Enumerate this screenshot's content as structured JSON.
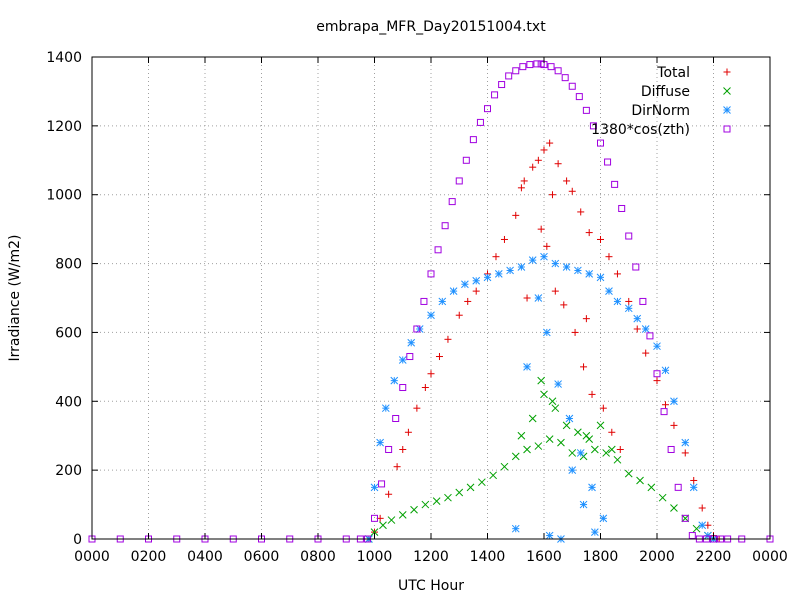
{
  "chart_data": {
    "type": "scatter",
    "title": "embrapa_MFR_Day20151004.txt",
    "xlabel": "UTC Hour",
    "ylabel": "Irradiance (W/m2)",
    "xlim": [
      0,
      24
    ],
    "ylim": [
      0,
      1400
    ],
    "x_ticks": [
      {
        "value": 0,
        "label": "0000"
      },
      {
        "value": 2,
        "label": "0200"
      },
      {
        "value": 4,
        "label": "0400"
      },
      {
        "value": 6,
        "label": "0600"
      },
      {
        "value": 8,
        "label": "0800"
      },
      {
        "value": 10,
        "label": "1000"
      },
      {
        "value": 12,
        "label": "1200"
      },
      {
        "value": 14,
        "label": "1400"
      },
      {
        "value": 16,
        "label": "1600"
      },
      {
        "value": 18,
        "label": "1800"
      },
      {
        "value": 20,
        "label": "2000"
      },
      {
        "value": 22,
        "label": "2200"
      },
      {
        "value": 24,
        "label": "0000"
      }
    ],
    "y_ticks": [
      0,
      200,
      400,
      600,
      800,
      1000,
      1200,
      1400
    ],
    "grid": true,
    "legend_position": "top-right",
    "series": [
      {
        "name": "Total",
        "color": "#e00000",
        "marker": "plus",
        "x": [
          9.8,
          10.0,
          10.2,
          10.5,
          10.8,
          11.0,
          11.2,
          11.5,
          11.8,
          12.0,
          12.3,
          12.6,
          13.0,
          13.3,
          13.6,
          14.0,
          14.3,
          14.6,
          15.0,
          15.3,
          15.6,
          15.8,
          16.0,
          16.2,
          16.5,
          16.8,
          17.0,
          17.3,
          17.6,
          18.0,
          18.3,
          18.6,
          19.0,
          19.3,
          19.6,
          20.0,
          20.3,
          20.6,
          21.0,
          21.3,
          21.6,
          21.8,
          22.0,
          22.2,
          15.4,
          15.9,
          16.1,
          16.4,
          16.7,
          17.1,
          17.4,
          17.7,
          18.1,
          18.4,
          18.7,
          15.2,
          16.3,
          17.5
        ],
        "y": [
          0,
          20,
          60,
          130,
          210,
          260,
          310,
          380,
          440,
          480,
          530,
          580,
          650,
          690,
          720,
          770,
          820,
          870,
          940,
          1040,
          1080,
          1100,
          1130,
          1150,
          1090,
          1040,
          1010,
          950,
          890,
          870,
          820,
          770,
          690,
          610,
          540,
          460,
          390,
          330,
          250,
          170,
          90,
          40,
          10,
          0,
          700,
          900,
          850,
          720,
          680,
          600,
          500,
          420,
          380,
          310,
          260,
          1020,
          1000,
          640
        ]
      },
      {
        "name": "Diffuse",
        "color": "#00a000",
        "marker": "x",
        "x": [
          9.8,
          10.0,
          10.3,
          10.6,
          11.0,
          11.4,
          11.8,
          12.2,
          12.6,
          13.0,
          13.4,
          13.8,
          14.2,
          14.6,
          15.0,
          15.4,
          15.8,
          16.2,
          16.6,
          17.0,
          17.4,
          17.8,
          18.2,
          18.6,
          19.0,
          19.4,
          19.8,
          20.2,
          20.6,
          21.0,
          21.4,
          21.8,
          22.0,
          15.2,
          15.6,
          16.0,
          16.4,
          16.8,
          17.2,
          17.6,
          18.0,
          18.4,
          15.9,
          16.3,
          17.5
        ],
        "y": [
          0,
          20,
          40,
          55,
          70,
          85,
          100,
          110,
          120,
          135,
          150,
          165,
          185,
          210,
          240,
          260,
          270,
          290,
          280,
          250,
          240,
          260,
          250,
          230,
          190,
          170,
          150,
          120,
          90,
          60,
          30,
          10,
          0,
          300,
          350,
          420,
          380,
          330,
          310,
          290,
          330,
          260,
          460,
          400,
          300
        ]
      },
      {
        "name": "DirNorm",
        "color": "#1e90ff",
        "marker": "star",
        "x": [
          9.8,
          10.0,
          10.2,
          10.4,
          10.7,
          11.0,
          11.3,
          11.6,
          12.0,
          12.4,
          12.8,
          13.2,
          13.6,
          14.0,
          14.4,
          14.8,
          15.2,
          15.6,
          16.0,
          16.4,
          16.8,
          17.2,
          17.6,
          18.0,
          18.3,
          18.6,
          19.0,
          19.3,
          19.6,
          20.0,
          20.3,
          20.6,
          21.0,
          21.3,
          21.6,
          21.8,
          22.0,
          15.4,
          15.8,
          16.1,
          16.5,
          16.9,
          17.3,
          17.7,
          18.1,
          15.0,
          16.2,
          17.0,
          17.8,
          16.6,
          17.4
        ],
        "y": [
          0,
          150,
          280,
          380,
          460,
          520,
          570,
          610,
          650,
          690,
          720,
          740,
          750,
          760,
          770,
          780,
          790,
          810,
          820,
          800,
          790,
          780,
          770,
          760,
          720,
          690,
          670,
          640,
          610,
          560,
          490,
          400,
          280,
          150,
          40,
          10,
          0,
          500,
          700,
          600,
          450,
          350,
          250,
          150,
          60,
          30,
          10,
          200,
          20,
          0,
          100
        ]
      },
      {
        "name": "1380*cos(zth)",
        "color": "#a000e0",
        "marker": "square",
        "x": [
          0,
          1,
          2,
          3,
          4,
          5,
          6,
          7,
          8,
          9,
          9.5,
          9.75,
          10.0,
          10.25,
          10.5,
          10.75,
          11.0,
          11.25,
          11.5,
          11.75,
          12.0,
          12.25,
          12.5,
          12.75,
          13.0,
          13.25,
          13.5,
          13.75,
          14.0,
          14.25,
          14.5,
          14.75,
          15.0,
          15.25,
          15.5,
          15.75,
          15.9,
          16.0,
          16.25,
          16.5,
          16.75,
          17.0,
          17.25,
          17.5,
          17.75,
          18.0,
          18.25,
          18.5,
          18.75,
          19.0,
          19.25,
          19.5,
          19.75,
          20.0,
          20.25,
          20.5,
          20.75,
          21.0,
          21.25,
          21.5,
          21.75,
          22.0,
          22.25,
          22.5,
          23,
          24
        ],
        "y": [
          0,
          0,
          0,
          0,
          0,
          0,
          0,
          0,
          0,
          0,
          0,
          0,
          60,
          160,
          260,
          350,
          440,
          530,
          610,
          690,
          770,
          840,
          910,
          980,
          1040,
          1100,
          1160,
          1210,
          1250,
          1290,
          1320,
          1345,
          1360,
          1372,
          1378,
          1380,
          1380,
          1378,
          1372,
          1360,
          1340,
          1315,
          1285,
          1245,
          1200,
          1150,
          1095,
          1030,
          960,
          880,
          790,
          690,
          590,
          480,
          370,
          260,
          150,
          60,
          10,
          0,
          0,
          0,
          0,
          0,
          0,
          0
        ]
      }
    ]
  }
}
